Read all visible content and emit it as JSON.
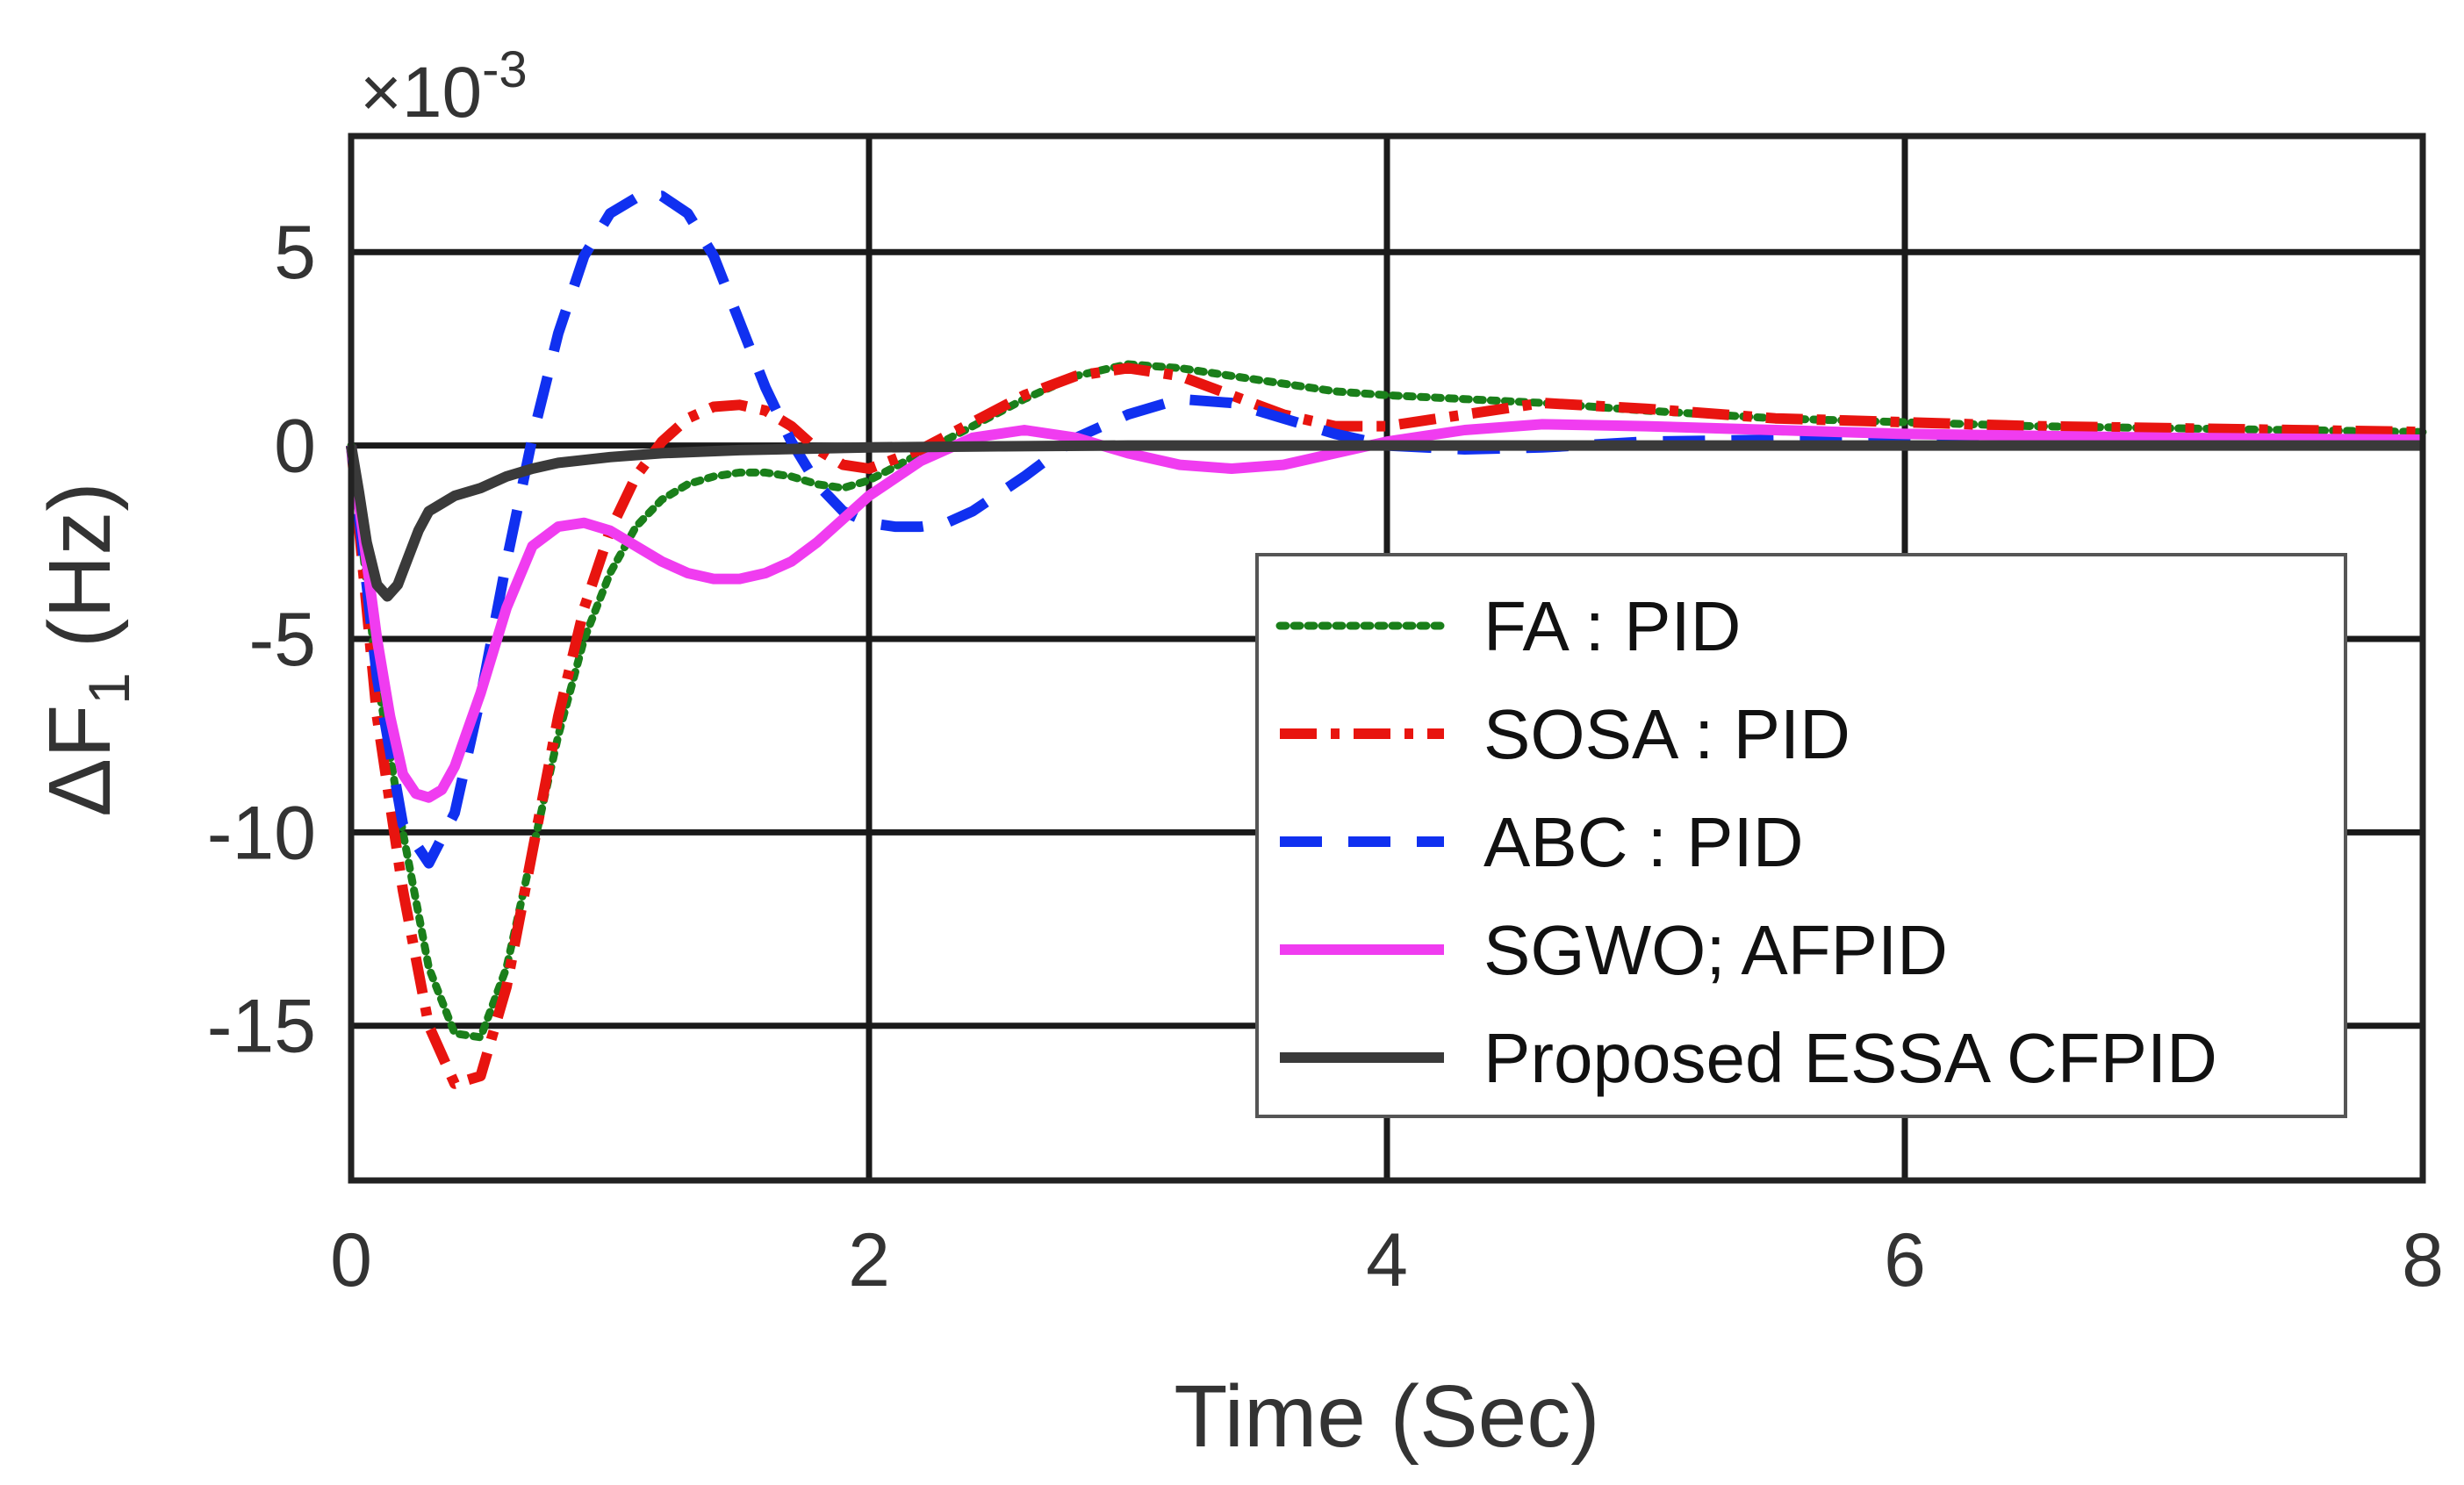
{
  "chart_data": {
    "type": "line",
    "title": "",
    "xlabel": "Time (Sec)",
    "ylabel": {
      "prefix": "ΔF",
      "sub": "1",
      "suffix": "(Hz)"
    },
    "y_multiplier": {
      "times": "×",
      "base": "10",
      "exp": "-3"
    },
    "xlim": [
      0,
      8
    ],
    "ylim": [
      -19,
      8
    ],
    "xticks": [
      0,
      2,
      4,
      6,
      8
    ],
    "xtick_labels": [
      "0",
      "2",
      "4",
      "6",
      "8"
    ],
    "yticks": [
      5,
      0,
      -5,
      -10,
      -15
    ],
    "ytick_labels": [
      "5",
      "0",
      "-5",
      "-10",
      "-15"
    ],
    "grid": true,
    "legend_position": "right",
    "series": [
      {
        "name": "FA : PID",
        "label": "FA : PID",
        "color": "#1a7f1a",
        "style": "dotted",
        "x": [
          0,
          0.05,
          0.1,
          0.2,
          0.3,
          0.4,
          0.5,
          0.6,
          0.7,
          0.8,
          0.9,
          1.0,
          1.1,
          1.2,
          1.3,
          1.4,
          1.5,
          1.6,
          1.7,
          1.8,
          1.9,
          2.0,
          2.2,
          2.4,
          2.6,
          2.8,
          3.0,
          3.2,
          3.4,
          3.6,
          3.8,
          4.0,
          4.3,
          4.6,
          5.0,
          5.5,
          6.0,
          6.5,
          7.0,
          7.5,
          8.0
        ],
        "values": [
          0,
          -3,
          -6,
          -10,
          -13.5,
          -15.2,
          -15.3,
          -13.5,
          -10.5,
          -7.5,
          -5,
          -3.3,
          -2.1,
          -1.4,
          -1,
          -0.8,
          -0.7,
          -0.7,
          -0.8,
          -1,
          -1.1,
          -0.9,
          -0.2,
          0.5,
          1.2,
          1.8,
          2.1,
          2,
          1.8,
          1.6,
          1.4,
          1.3,
          1.2,
          1.1,
          0.9,
          0.7,
          0.6,
          0.5,
          0.45,
          0.4,
          0.35
        ]
      },
      {
        "name": "SOSA : PID",
        "label": "SOSA : PID",
        "color": "#e8140f",
        "style": "dashdot",
        "x": [
          0,
          0.05,
          0.1,
          0.2,
          0.3,
          0.4,
          0.5,
          0.6,
          0.7,
          0.8,
          0.9,
          1.0,
          1.1,
          1.2,
          1.3,
          1.4,
          1.5,
          1.6,
          1.7,
          1.8,
          1.9,
          2.0,
          2.2,
          2.4,
          2.6,
          2.8,
          3.0,
          3.2,
          3.4,
          3.6,
          3.8,
          4.0,
          4.3,
          4.6,
          5.0,
          5.5,
          6.0,
          6.5,
          7.0,
          7.5,
          8.0
        ],
        "values": [
          0,
          -3.5,
          -7,
          -11.5,
          -15,
          -16.5,
          -16.3,
          -14,
          -10.5,
          -7,
          -4.2,
          -2.2,
          -0.8,
          0.1,
          0.7,
          1,
          1.05,
          0.9,
          0.5,
          -0.1,
          -0.5,
          -0.6,
          -0.1,
          0.6,
          1.3,
          1.8,
          2,
          1.8,
          1.3,
          0.8,
          0.5,
          0.5,
          0.8,
          1.1,
          0.95,
          0.7,
          0.6,
          0.5,
          0.45,
          0.4,
          0.35
        ]
      },
      {
        "name": "ABC : PID",
        "label": "ABC : PID",
        "color": "#1030f0",
        "style": "dashed",
        "x": [
          0,
          0.05,
          0.1,
          0.2,
          0.3,
          0.4,
          0.5,
          0.6,
          0.7,
          0.8,
          0.9,
          1.0,
          1.1,
          1.2,
          1.3,
          1.4,
          1.5,
          1.6,
          1.7,
          1.8,
          1.9,
          2.0,
          2.1,
          2.2,
          2.3,
          2.4,
          2.6,
          2.8,
          3.0,
          3.2,
          3.4,
          3.6,
          3.8,
          4.0,
          4.3,
          4.6,
          5.0,
          5.5,
          6.0,
          7.0,
          8.0
        ],
        "values": [
          0,
          -3,
          -6,
          -9.8,
          -10.8,
          -9.5,
          -6.5,
          -3,
          0.2,
          2.9,
          4.9,
          6,
          6.4,
          6.45,
          6,
          4.9,
          3.2,
          1.5,
          0.1,
          -1,
          -1.7,
          -2,
          -2.1,
          -2.1,
          -2,
          -1.7,
          -0.8,
          0.2,
          0.8,
          1.2,
          1.1,
          0.7,
          0.3,
          0,
          -0.1,
          -0.05,
          0.1,
          0.15,
          0.15,
          0.12,
          0.1
        ]
      },
      {
        "name": "SGWO; AFPID",
        "label": "SGWO; AFPID",
        "color": "#f03cf0",
        "style": "solid",
        "x": [
          0,
          0.05,
          0.1,
          0.15,
          0.2,
          0.25,
          0.3,
          0.35,
          0.4,
          0.5,
          0.6,
          0.7,
          0.8,
          0.9,
          1.0,
          1.1,
          1.2,
          1.3,
          1.4,
          1.5,
          1.6,
          1.7,
          1.8,
          1.9,
          2.0,
          2.2,
          2.4,
          2.6,
          2.8,
          3.0,
          3.2,
          3.4,
          3.6,
          3.8,
          4.0,
          4.3,
          4.6,
          5.0,
          5.5,
          6.0,
          7.0,
          8.0
        ],
        "values": [
          0,
          -2.5,
          -5,
          -7,
          -8.5,
          -9,
          -9.1,
          -8.9,
          -8.3,
          -6.4,
          -4.2,
          -2.6,
          -2.1,
          -2,
          -2.2,
          -2.6,
          -3,
          -3.3,
          -3.45,
          -3.45,
          -3.3,
          -3,
          -2.5,
          -1.9,
          -1.3,
          -0.4,
          0.2,
          0.4,
          0.2,
          -0.2,
          -0.5,
          -0.6,
          -0.5,
          -0.2,
          0.1,
          0.4,
          0.55,
          0.5,
          0.4,
          0.3,
          0.2,
          0.15
        ]
      },
      {
        "name": "Proposed ESSA CFPID",
        "label": "Proposed ESSA CFPID",
        "color": "#3a3a3a",
        "style": "solid",
        "x": [
          0,
          0.03,
          0.06,
          0.1,
          0.14,
          0.18,
          0.22,
          0.26,
          0.3,
          0.35,
          0.4,
          0.5,
          0.6,
          0.7,
          0.8,
          1.0,
          1.2,
          1.5,
          2.0,
          2.5,
          3.0,
          4.0,
          5.0,
          6.0,
          7.0,
          8.0
        ],
        "values": [
          0,
          -1.2,
          -2.5,
          -3.6,
          -3.9,
          -3.6,
          -2.9,
          -2.2,
          -1.7,
          -1.5,
          -1.3,
          -1.1,
          -0.8,
          -0.6,
          -0.45,
          -0.3,
          -0.2,
          -0.12,
          -0.05,
          -0.02,
          0,
          0,
          0,
          0,
          0,
          0
        ]
      }
    ]
  }
}
